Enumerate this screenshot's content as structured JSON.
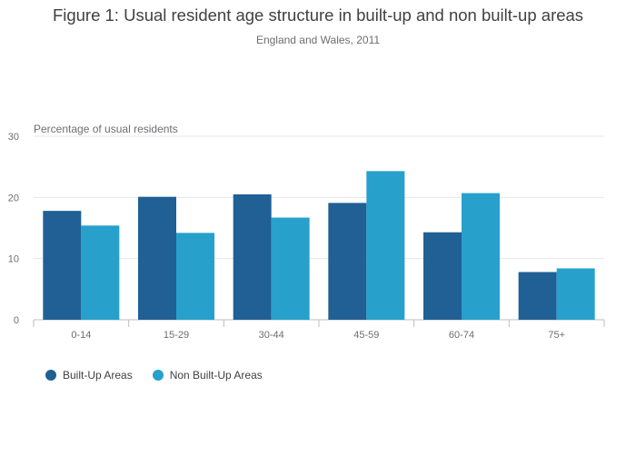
{
  "chart_data": {
    "type": "bar",
    "title": "Figure 1: Usual resident age structure in built-up and non built-up areas",
    "subtitle": "England and Wales, 2011",
    "ylabel": "Percentage of usual residents",
    "xlabel": "",
    "ylim": [
      0,
      30
    ],
    "yticks": [
      "0",
      "10",
      "20",
      "30"
    ],
    "grid": true,
    "legend_position": "bottom-left",
    "categories": [
      "0-14",
      "15-29",
      "30-44",
      "45-59",
      "60-74",
      "75+"
    ],
    "series": [
      {
        "name": "Built-Up Areas",
        "color": "#206095",
        "values": [
          17.8,
          20.1,
          20.5,
          19.1,
          14.3,
          7.8
        ]
      },
      {
        "name": "Non Built-Up Areas",
        "color": "#27a0cc",
        "values": [
          15.4,
          14.2,
          16.7,
          24.3,
          20.7,
          8.4
        ]
      }
    ]
  }
}
